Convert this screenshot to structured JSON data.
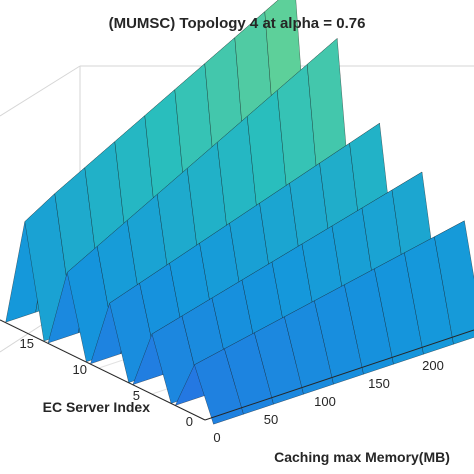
{
  "chart_data": {
    "type": "surface",
    "title": "(MUMSC) Topology 4 at alpha = 0.76",
    "xlabel": "Caching max Memory(MB)",
    "ylabel": "EC Server Index",
    "zlabel": "",
    "x_ticks": [
      "0",
      "50",
      "100",
      "150",
      "200"
    ],
    "y_ticks": [
      "0",
      "5",
      "10",
      "15"
    ],
    "x_range": [
      0,
      250
    ],
    "y_range": [
      0,
      20
    ],
    "grid": true,
    "colormap": "parula",
    "colors": {
      "low": "#3a2aa0",
      "mid": "#1a86d8",
      "high": "#3ec3a8"
    },
    "ridges": [
      {
        "server_index": 1,
        "values": [
          0.25,
          0.28,
          0.31,
          0.34,
          0.37,
          0.4,
          0.43,
          0.46,
          0.49,
          0.52
        ]
      },
      {
        "server_index": 5,
        "values": [
          0.3,
          0.34,
          0.38,
          0.42,
          0.46,
          0.5,
          0.54,
          0.58,
          0.62,
          0.66
        ]
      },
      {
        "server_index": 9,
        "values": [
          0.35,
          0.4,
          0.45,
          0.5,
          0.55,
          0.6,
          0.65,
          0.7,
          0.75,
          0.8
        ]
      },
      {
        "server_index": 13,
        "values": [
          0.4,
          0.48,
          0.56,
          0.64,
          0.72,
          0.8,
          0.88,
          0.96,
          1.04,
          1.12
        ]
      },
      {
        "server_index": 17,
        "values": [
          0.55,
          0.64,
          0.72,
          0.8,
          0.88,
          0.96,
          1.04,
          1.12,
          1.2,
          1.28
        ]
      }
    ]
  }
}
